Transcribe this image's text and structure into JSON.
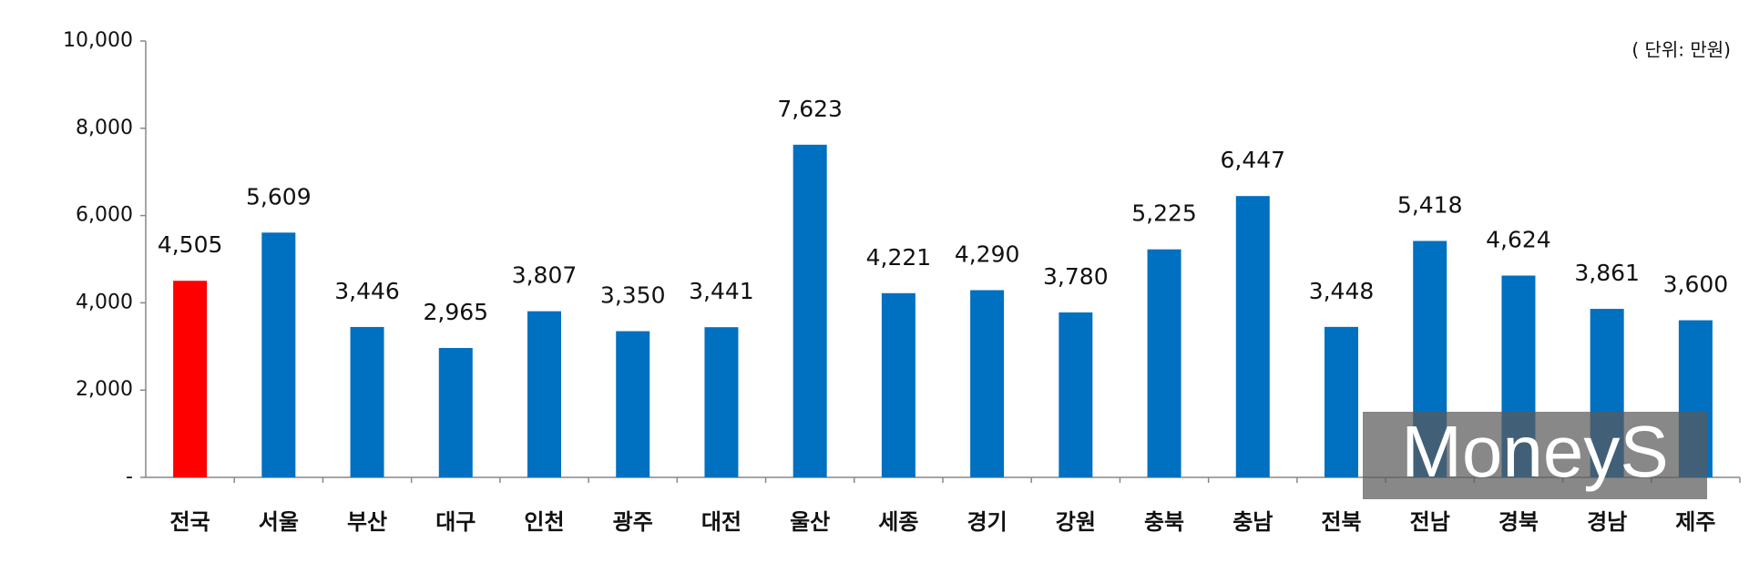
{
  "chart_data": {
    "type": "bar",
    "note": "( 단위: 만원)",
    "watermark": "MoneyS",
    "categories": [
      "전국",
      "서울",
      "부산",
      "대구",
      "인천",
      "광주",
      "대전",
      "울산",
      "세종",
      "경기",
      "강원",
      "충북",
      "충남",
      "전북",
      "전남",
      "경북",
      "경남",
      "제주"
    ],
    "values": [
      4505,
      5609,
      3446,
      2965,
      3807,
      3350,
      3441,
      7623,
      4221,
      4290,
      3780,
      5225,
      6447,
      3448,
      5418,
      4624,
      3861,
      3600
    ],
    "value_labels": [
      "4,505",
      "5,609",
      "3,446",
      "2,965",
      "3,807",
      "3,350",
      "3,441",
      "7,623",
      "4,221",
      "4,290",
      "3,780",
      "5,225",
      "6,447",
      "3,448",
      "5,418",
      "4,624",
      "3,861",
      "3,600"
    ],
    "colors": [
      "#ff0000",
      "#0070c0",
      "#0070c0",
      "#0070c0",
      "#0070c0",
      "#0070c0",
      "#0070c0",
      "#0070c0",
      "#0070c0",
      "#0070c0",
      "#0070c0",
      "#0070c0",
      "#0070c0",
      "#0070c0",
      "#0070c0",
      "#0070c0",
      "#0070c0",
      "#0070c0"
    ],
    "ylim": [
      0,
      10000
    ],
    "yticks": [
      {
        "value": 0,
        "label": "-"
      },
      {
        "value": 2000,
        "label": "2,000"
      },
      {
        "value": 4000,
        "label": "4,000"
      },
      {
        "value": 6000,
        "label": "6,000"
      },
      {
        "value": 8000,
        "label": "8,000"
      },
      {
        "value": 10000,
        "label": "10,000"
      }
    ],
    "grid": false
  }
}
